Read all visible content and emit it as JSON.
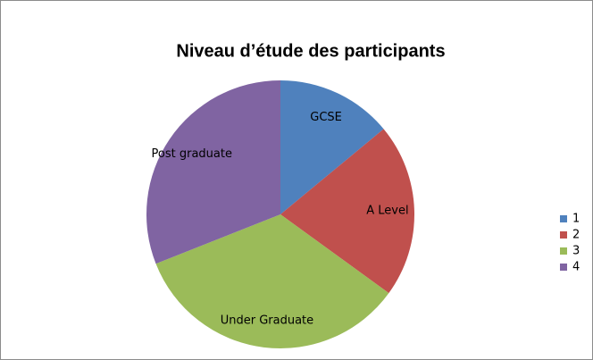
{
  "chart_data": {
    "type": "pie",
    "title": "Niveau d’étude des participants",
    "categories": [
      "GCSE",
      "A Level",
      "Under Graduate",
      "Post graduate"
    ],
    "values": [
      14,
      21,
      34,
      31
    ],
    "colors": [
      "#4f81bd",
      "#c0504d",
      "#9bbb59",
      "#8064a2"
    ],
    "legend": [
      "1",
      "2",
      "3",
      "4"
    ],
    "legend_position": "right"
  }
}
